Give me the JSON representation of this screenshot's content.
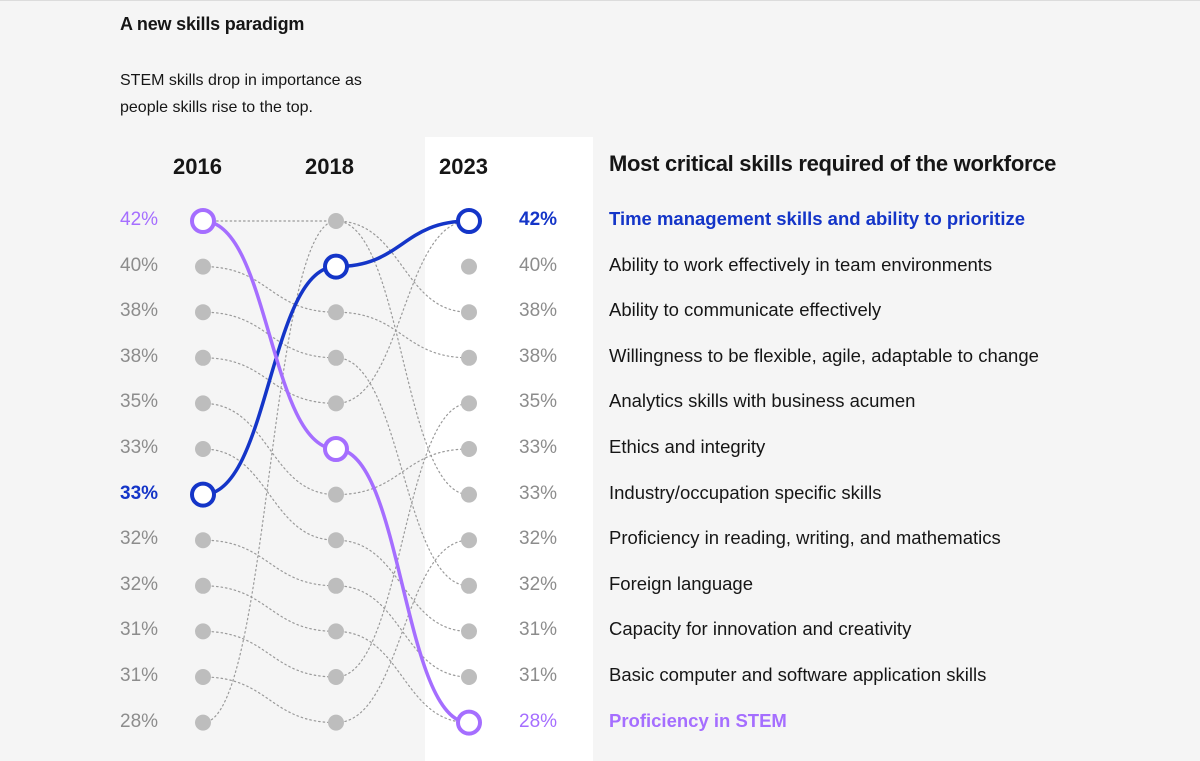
{
  "title": "A new skills paradigm",
  "subtitle": "STEM skills drop in importance as people skills rise to the top.",
  "chart_data": {
    "type": "slope",
    "years": [
      "2016",
      "2018",
      "2023"
    ],
    "legend_title": "Most critical skills required of the workforce",
    "percent_labels_2016": [
      "42%",
      "40%",
      "38%",
      "38%",
      "35%",
      "33%",
      "33%",
      "32%",
      "32%",
      "31%",
      "31%",
      "28%"
    ],
    "percent_labels_2023": [
      "42%",
      "40%",
      "38%",
      "38%",
      "35%",
      "33%",
      "33%",
      "32%",
      "32%",
      "31%",
      "31%",
      "28%"
    ],
    "skills_ranked_2023": [
      "Time management skills and ability to prioritize",
      "Ability to work effectively in team environments",
      "Ability to communicate effectively",
      "Willingness to be flexible, agile, adaptable to change",
      "Analytics skills with business acumen",
      "Ethics and integrity",
      "Industry/occupation specific skills",
      "Proficiency in reading, writing, and mathematics",
      "Foreign language",
      "Capacity for innovation and creativity",
      "Basic computer and software application skills",
      "Proficiency in STEM"
    ],
    "highlighted": [
      {
        "skill": "Time management skills and ability to prioritize",
        "ranks": [
          7,
          2,
          1
        ],
        "color": "#1435c8"
      },
      {
        "skill": "Proficiency in STEM",
        "ranks": [
          1,
          6,
          12
        ],
        "color": "#a56eff"
      }
    ],
    "background_connections": [
      [
        1,
        3
      ],
      [
        2,
        4
      ],
      [
        3,
        9
      ],
      [
        4,
        1
      ],
      [
        5,
        6
      ],
      [
        6,
        10
      ],
      [
        8,
        11
      ],
      [
        9,
        12
      ],
      [
        10,
        5
      ],
      [
        11,
        8
      ],
      [
        12,
        7
      ]
    ],
    "colors": {
      "blue": "#1435c8",
      "purple": "#a56eff",
      "node": "#bdbdbd",
      "connector": "#9a9a9a",
      "muted_text": "#8c8c8c"
    }
  }
}
